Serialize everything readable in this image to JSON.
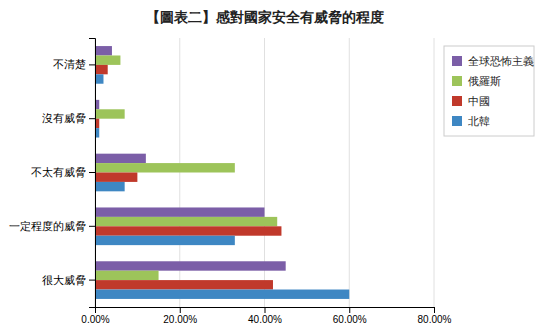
{
  "chart_data": {
    "type": "bar",
    "orientation": "horizontal",
    "title": "【圖表二】感對國家安全有威脅的程度",
    "categories": [
      "很大威脅",
      "一定程度的威脅",
      "不太有威脅",
      "沒有威脅",
      "不清楚"
    ],
    "series": [
      {
        "name": "全球恐怖主義",
        "color": "#7B5EA7",
        "values": [
          0.45,
          0.4,
          0.12,
          0.01,
          0.04
        ]
      },
      {
        "name": "俄羅斯",
        "color": "#9DC45A",
        "values": [
          0.15,
          0.43,
          0.33,
          0.07,
          0.06
        ]
      },
      {
        "name": "中國",
        "color": "#C0392B",
        "values": [
          0.42,
          0.44,
          0.1,
          0.01,
          0.03
        ]
      },
      {
        "name": "北韓",
        "color": "#3E87C3",
        "values": [
          0.6,
          0.33,
          0.07,
          0.01,
          0.02
        ]
      }
    ],
    "xlim": [
      0,
      0.8
    ],
    "xticks": [
      {
        "value": 0.0,
        "label": "0.00%"
      },
      {
        "value": 0.2,
        "label": "20.00%"
      },
      {
        "value": 0.4,
        "label": "40.00%"
      },
      {
        "value": 0.6,
        "label": "60.00%"
      },
      {
        "value": 0.8,
        "label": "80.00%"
      }
    ],
    "grid": true,
    "legend": "right"
  }
}
